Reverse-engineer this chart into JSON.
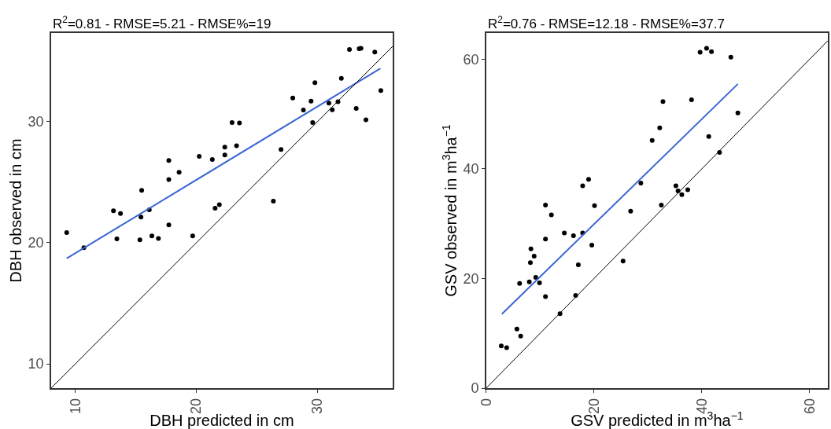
{
  "chart_data": [
    {
      "type": "scatter",
      "title": "R$^{2}$=0.81 - RMSE=5.21 - RMSE%=19",
      "xlabel": "DBH predicted in cm",
      "ylabel": "DBH observed in cm",
      "xlim": [
        8,
        36.2
      ],
      "ylim": [
        8,
        37.3
      ],
      "xticks": [
        10,
        20,
        30
      ],
      "yticks": [
        10,
        20,
        30
      ],
      "series": [
        {
          "color": "#000000",
          "x": [
            9.29,
            10.71,
            13.15,
            13.73,
            13.43,
            15.48,
            15.42,
            16.11,
            15.33,
            16.32,
            16.86,
            17.72,
            17.72,
            18.57,
            17.72,
            19.69,
            20.23,
            21.31,
            21.54,
            21.89,
            22.34,
            22.34,
            22.94,
            23.55,
            23.31,
            26.35,
            26.98,
            27.95,
            28.83,
            29.46,
            29.59,
            29.78,
            30.93,
            31.21,
            31.68,
            31.96,
            32.63,
            33.19,
            33.43,
            33.58,
            33.99,
            34.72,
            35.22
          ],
          "values": [
            20.84,
            19.59,
            22.63,
            22.4,
            20.32,
            24.32,
            22.12,
            22.72,
            20.24,
            20.56,
            20.35,
            26.78,
            25.21,
            25.81,
            21.47,
            20.56,
            27.13,
            26.87,
            22.85,
            23.13,
            27.88,
            27.24,
            29.91,
            29.87,
            27.99,
            23.43,
            27.69,
            31.94,
            30.95,
            31.68,
            29.91,
            33.2,
            31.51,
            30.97,
            31.62,
            33.56,
            35.94,
            31.08,
            36.0,
            36.03,
            30.13,
            35.72,
            32.55
          ]
        },
        {
          "type": "line",
          "color": "#3a66d4",
          "x": [
            9.29,
            35.18
          ],
          "values": [
            18.7,
            34.38
          ]
        },
        {
          "type": "line",
          "color": "#000000",
          "x": [
            8,
            36.2
          ],
          "values": [
            8,
            36.2
          ]
        }
      ]
    },
    {
      "type": "scatter",
      "title": "R$^{2}$=0.76 - RMSE=12.18 - RMSE%=37.7",
      "xlabel": "GSV predicted in m$^{3}$ha$^{−1}$",
      "ylabel": "GSV observed in m$^{3}$ha$^{−1}$",
      "xlim": [
        0,
        63.4
      ],
      "ylim": [
        0,
        64.8
      ],
      "xticks": [
        0,
        20,
        40,
        60
      ],
      "yticks": [
        0,
        20,
        40,
        60
      ],
      "series": [
        {
          "color": "#000000",
          "x": [
            2.8,
            3.8,
            5.7,
            6.4,
            6.2,
            8.0,
            8.2,
            8.9,
            8.3,
            9.2,
            9.9,
            11.0,
            12.1,
            11.0,
            11.0,
            13.7,
            14.5,
            16.2,
            16.6,
            17.1,
            17.9,
            17.9,
            19.0,
            19.6,
            20.1,
            25.4,
            26.8,
            28.7,
            30.8,
            32.2,
            32.5,
            32.8,
            35.2,
            35.6,
            36.3,
            37.4,
            38.1,
            39.7,
            40.9,
            41.8,
            41.3,
            43.3,
            45.4,
            46.7
          ],
          "values": [
            7.7,
            7.4,
            10.8,
            9.5,
            19.1,
            19.4,
            22.9,
            24.1,
            25.4,
            20.2,
            19.2,
            33.4,
            31.6,
            27.2,
            16.7,
            13.6,
            28.3,
            27.8,
            16.9,
            22.5,
            28.3,
            36.9,
            38.1,
            26.1,
            33.3,
            23.2,
            32.3,
            37.4,
            45.2,
            47.5,
            33.4,
            52.3,
            36.9,
            36.0,
            35.3,
            36.2,
            52.6,
            61.3,
            62.0,
            61.4,
            45.9,
            43.0,
            60.4,
            50.2
          ]
        },
        {
          "type": "line",
          "color": "#3a66d4",
          "x": [
            2.9,
            46.7
          ],
          "values": [
            13.5,
            55.5
          ]
        },
        {
          "type": "line",
          "color": "#000000",
          "x": [
            0,
            63.4
          ],
          "values": [
            0,
            63.4
          ]
        }
      ]
    }
  ]
}
